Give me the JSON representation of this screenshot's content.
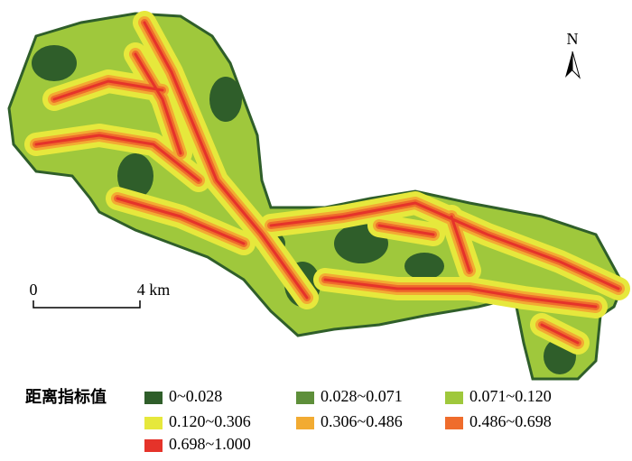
{
  "north_arrow": {
    "label": "N"
  },
  "scale_bar": {
    "start_label": "0",
    "end_label": "4 km"
  },
  "legend": {
    "title": "距离指标值",
    "items": [
      {
        "label": "0~0.028",
        "color": "#2f5e2a"
      },
      {
        "label": "0.028~0.071",
        "color": "#5e8f3a"
      },
      {
        "label": "0.071~0.120",
        "color": "#9fc83c"
      },
      {
        "label": "0.120~0.306",
        "color": "#e6e83c"
      },
      {
        "label": "0.306~0.486",
        "color": "#f2ab32"
      },
      {
        "label": "0.486~0.698",
        "color": "#ef6c2c"
      },
      {
        "label": "0.698~1.000",
        "color": "#e5332a"
      }
    ]
  }
}
